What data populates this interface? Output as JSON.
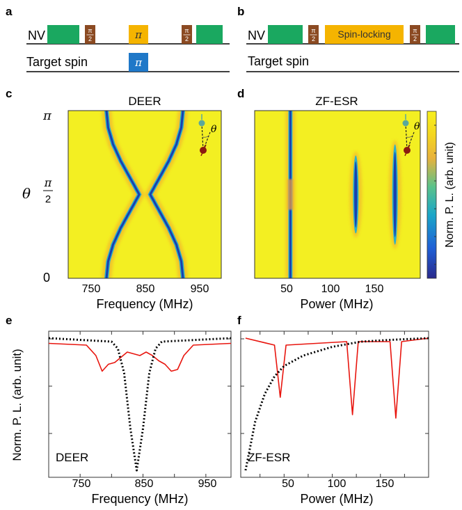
{
  "panels": {
    "a": "a",
    "b": "b",
    "c": "c",
    "d": "d",
    "e": "e",
    "f": "f"
  },
  "pulse_a": {
    "nv_label": "NV",
    "target_label": "Target spin",
    "half_pi_num": "π",
    "half_pi_den": "2",
    "pi_label": "π",
    "target_pi_label": "π",
    "colors": {
      "laser": "#1aa860",
      "half_pi": "#8b4a22",
      "pi": "#f5b400",
      "target_pi": "#1f78c8"
    }
  },
  "pulse_b": {
    "nv_label": "NV",
    "target_label": "Target spin",
    "half_pi_num": "π",
    "half_pi_den": "2",
    "spin_lock_label": "Spin-locking",
    "colors": {
      "laser": "#1aa860",
      "half_pi": "#8b4a22",
      "spin_lock": "#f5b400"
    }
  },
  "panel_c": {
    "title": "DEER",
    "xlabel": "Frequency (MHz)",
    "xticks": [
      "750",
      "850",
      "950"
    ],
    "ylabel_theta": "θ",
    "yticks": {
      "top": "π",
      "mid_num": "π",
      "mid_den": "2",
      "bottom": "0"
    },
    "inset_theta": "θ"
  },
  "panel_d": {
    "title": "ZF-ESR",
    "xlabel": "Power (MHz)",
    "xticks": [
      "50",
      "100",
      "150"
    ],
    "colorbar_label": "Norm. P. L. (arb. unit)",
    "inset_theta": "θ"
  },
  "panel_e": {
    "ylabel": "Norm. P. L. (arb. unit)",
    "xlabel": "Frequency (MHz)",
    "xticks": [
      "750",
      "850",
      "950"
    ],
    "annotation": "DEER"
  },
  "panel_f": {
    "xlabel": "Power (MHz)",
    "xticks": [
      "50",
      "100",
      "150"
    ],
    "annotation": "ZF-ESR"
  },
  "chart_data": [
    {
      "type": "heatmap",
      "id": "c",
      "title": "DEER",
      "xlabel": "Frequency (MHz)",
      "ylabel": "θ",
      "xlim": [
        700,
        980
      ],
      "ylim": [
        0,
        3.14159
      ],
      "feature": "two dips symmetric about 840 MHz: at 770 and 910 MHz for θ=0 and θ=π, merging to 830 and 850 MHz at θ=π/2",
      "dip_curve_theta": [
        0,
        0.314,
        0.628,
        0.942,
        1.257,
        1.571
      ],
      "dip_curve_offset_MHz": [
        70,
        67,
        58,
        44,
        27,
        10
      ]
    },
    {
      "type": "heatmap",
      "id": "d",
      "title": "ZF-ESR",
      "xlabel": "Power (MHz)",
      "xlim": [
        5,
        195
      ],
      "ylim": [
        0,
        3.14159
      ],
      "colorbar": "Norm. P. L. (arb. unit)",
      "lines": [
        {
          "x": 46,
          "theta_range": [
            0,
            3.14159
          ],
          "gap_at_pi_over_2": true
        },
        {
          "x": 121,
          "theta_range": [
            0.84,
            2.3
          ]
        },
        {
          "x": 166,
          "theta_range": [
            0.63,
            2.51
          ]
        }
      ]
    },
    {
      "type": "line",
      "id": "e",
      "xlabel": "Frequency (MHz)",
      "ylabel": "Norm. P. L. (arb. unit)",
      "xlim": [
        700,
        990
      ],
      "ylim": [
        0.6,
        1.02
      ],
      "series": [
        {
          "name": "simulation",
          "style": "solid red",
          "x": [
            700,
            760,
            775,
            785,
            795,
            805,
            815,
            825,
            835,
            845,
            855,
            865,
            875,
            885,
            895,
            905,
            915,
            930,
            990
          ],
          "y": [
            0.985,
            0.98,
            0.95,
            0.905,
            0.925,
            0.93,
            0.945,
            0.96,
            0.955,
            0.95,
            0.96,
            0.95,
            0.935,
            0.925,
            0.905,
            0.91,
            0.95,
            0.98,
            0.985
          ]
        },
        {
          "name": "reference",
          "style": "dotted black",
          "x": [
            700,
            800,
            810,
            820,
            830,
            840,
            850,
            860,
            870,
            880,
            990
          ],
          "y": [
            1.0,
            0.99,
            0.97,
            0.9,
            0.74,
            0.62,
            0.74,
            0.9,
            0.97,
            0.99,
            1.0
          ]
        }
      ]
    },
    {
      "type": "line",
      "id": "f",
      "xlabel": "Power (MHz)",
      "xlim": [
        5,
        200
      ],
      "ylim": [
        0.6,
        1.02
      ],
      "series": [
        {
          "name": "simulation",
          "style": "solid red",
          "x": [
            10,
            40,
            46,
            52,
            115,
            121,
            127,
            160,
            166,
            172,
            200
          ],
          "y": [
            1.0,
            0.98,
            0.83,
            0.98,
            0.99,
            0.78,
            0.99,
            0.99,
            0.77,
            0.99,
            1.0
          ]
        },
        {
          "name": "reference",
          "style": "dotted black",
          "x": [
            10,
            20,
            30,
            40,
            50,
            70,
            100,
            130,
            160,
            200
          ],
          "y": [
            0.62,
            0.76,
            0.84,
            0.89,
            0.92,
            0.95,
            0.975,
            0.99,
            0.995,
            1.0
          ]
        }
      ]
    }
  ]
}
